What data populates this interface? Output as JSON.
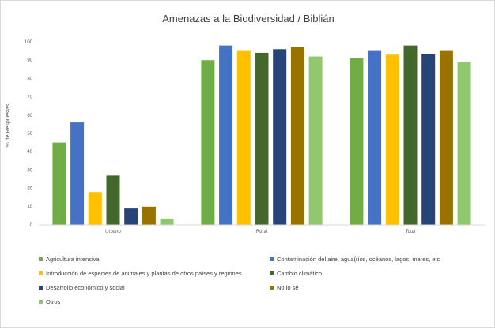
{
  "chart_data": {
    "type": "bar",
    "title": "Amenazas a la Biodiversidad / Biblián",
    "ylabel": "% de Respuestas",
    "xlabel": "",
    "ylim": [
      0,
      100
    ],
    "yticks": [
      0,
      10,
      20,
      30,
      40,
      50,
      60,
      70,
      80,
      90,
      100
    ],
    "categories": [
      "Urbano",
      "Rural",
      "Total"
    ],
    "legend_position": "bottom",
    "grid": false,
    "series": [
      {
        "name": "Agricultura intensiva",
        "color": "#70ad47",
        "values": [
          45,
          90,
          91
        ]
      },
      {
        "name": "Contaminación del aire, agua(ríos, océanos, lagos, mares, etc",
        "color": "#4472c4",
        "values": [
          56,
          98,
          95
        ]
      },
      {
        "name": "Introducción de especies de animales y plantas de otros países y regiones",
        "color": "#ffc000",
        "values": [
          18,
          95,
          93
        ]
      },
      {
        "name": "Cambio climático",
        "color": "#43682b",
        "values": [
          27,
          94,
          98
        ]
      },
      {
        "name": "Desarrollo económico y social",
        "color": "#264478",
        "values": [
          9,
          96,
          93.5
        ]
      },
      {
        "name": "No lo sé",
        "color": "#997300",
        "values": [
          10,
          97,
          95
        ]
      },
      {
        "name": "Otros",
        "color": "#8fc86e",
        "values": [
          3.5,
          92,
          89
        ]
      }
    ]
  }
}
